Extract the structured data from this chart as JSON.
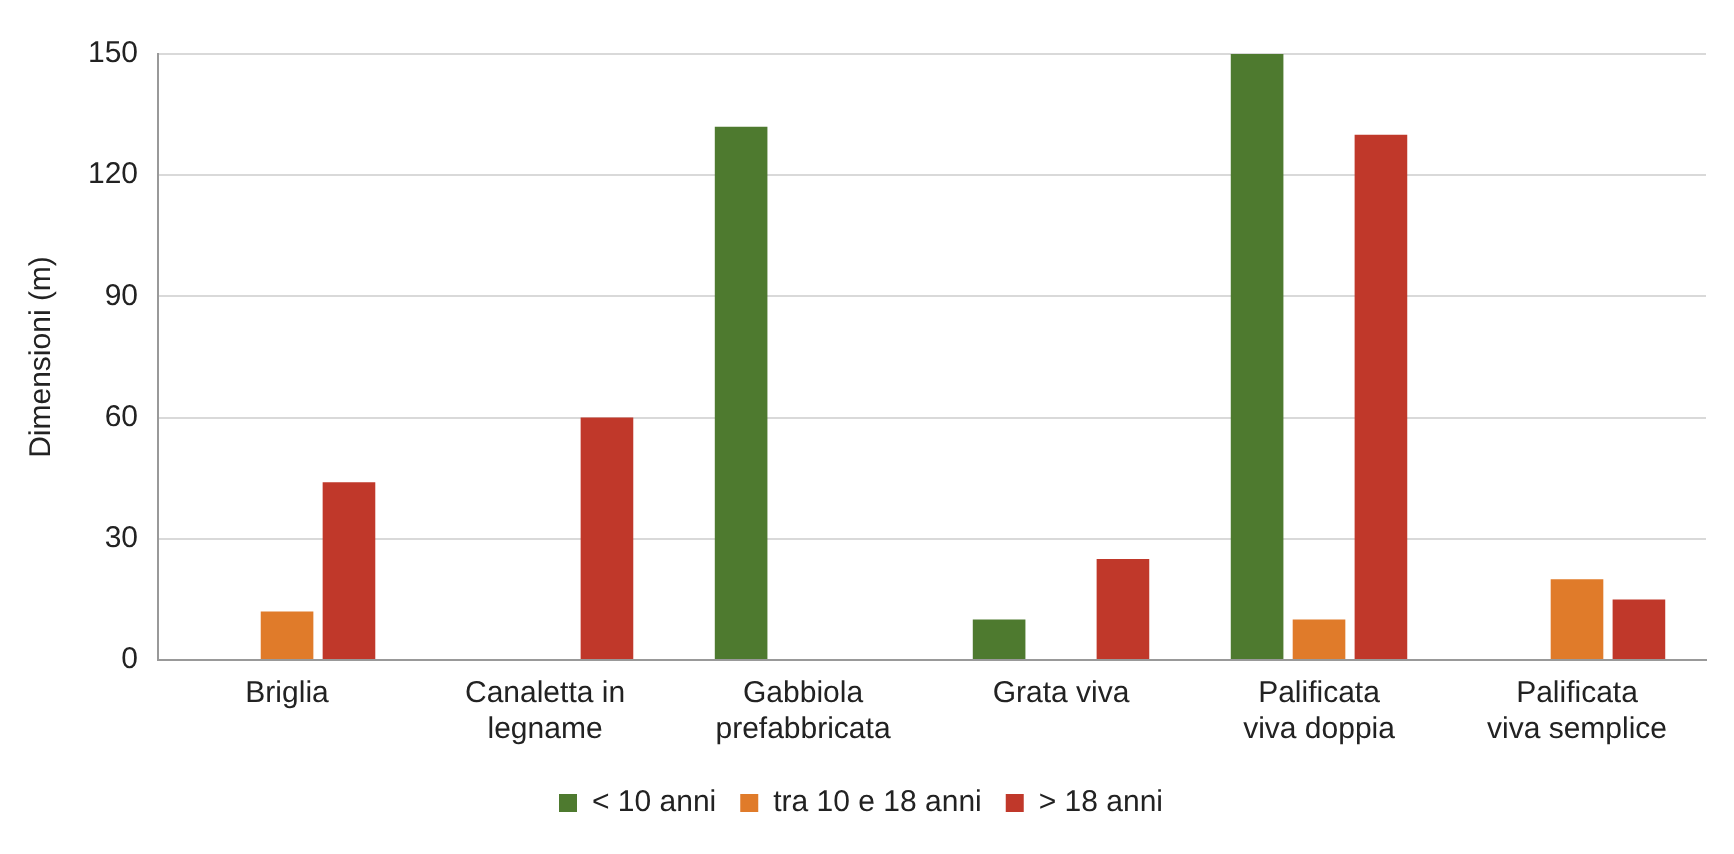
{
  "chart_data": {
    "type": "bar",
    "ylabel": "Dimensioni (m)",
    "categories": [
      "Briglia",
      "Canaletta in legname",
      "Gabbiola prefabbricata",
      "Grata viva",
      "Palificata viva doppia",
      "Palificata viva semplice"
    ],
    "series": [
      {
        "name": "< 10 anni",
        "color": "#4e7a2f",
        "values": [
          0,
          0,
          132,
          10,
          150,
          0
        ]
      },
      {
        "name": "tra 10 e 18 anni",
        "color": "#e07b2a",
        "values": [
          12,
          0,
          0,
          0,
          10,
          20
        ]
      },
      {
        "name": "> 18 anni",
        "color": "#c0382a",
        "values": [
          44,
          60,
          0,
          25,
          130,
          15
        ]
      }
    ],
    "ylim": [
      0,
      150
    ],
    "yticks": [
      0,
      30,
      60,
      90,
      120,
      150
    ],
    "grid": "y",
    "legend": "bottom"
  }
}
